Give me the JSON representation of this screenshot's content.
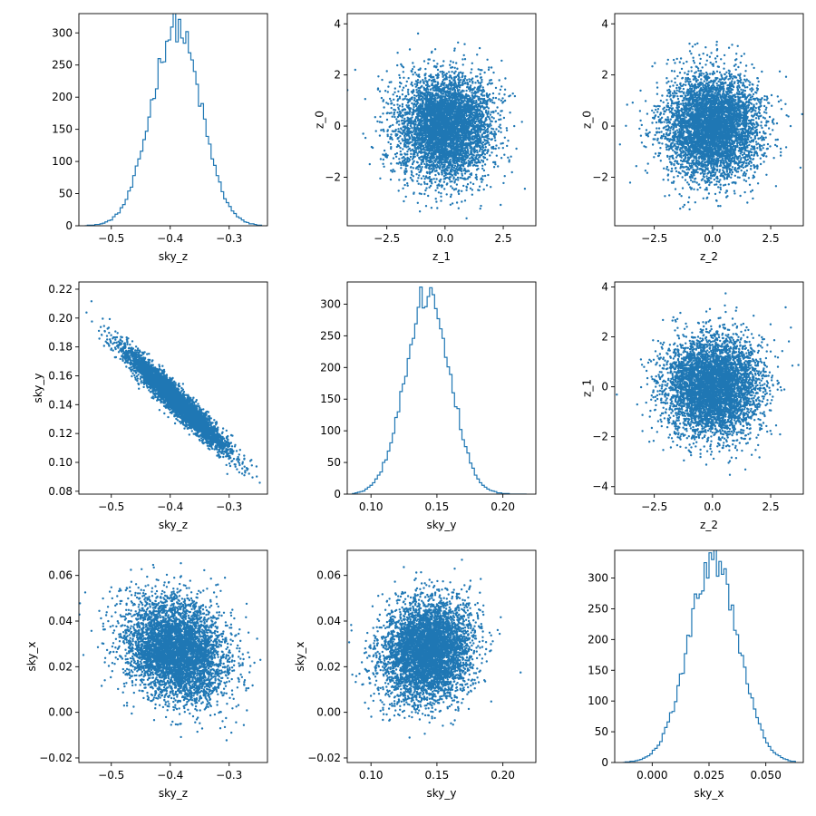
{
  "colors": {
    "series": "#1f77b4",
    "frame": "#000000",
    "background": "#ffffff"
  },
  "chart_data": [
    {
      "type": "histogram",
      "xlabel": "sky_z",
      "ylabel": "",
      "xlim": [
        -0.555,
        -0.235
      ],
      "ylim": [
        0,
        330
      ],
      "xticks": [
        {
          "v": -0.5,
          "l": "−0.5"
        },
        {
          "v": -0.4,
          "l": "−0.4"
        },
        {
          "v": -0.3,
          "l": "−0.3"
        }
      ],
      "yticks": [
        {
          "v": 0,
          "l": "0"
        },
        {
          "v": 50,
          "l": "50"
        },
        {
          "v": 100,
          "l": "100"
        },
        {
          "v": 150,
          "l": "150"
        },
        {
          "v": 200,
          "l": "200"
        },
        {
          "v": 250,
          "l": "250"
        },
        {
          "v": 300,
          "l": "300"
        }
      ],
      "hist": {
        "mean": -0.39,
        "sd": 0.042,
        "peak": 310,
        "range": [
          -0.545,
          -0.245
        ],
        "bins": 70
      }
    },
    {
      "type": "scatter",
      "xlabel": "z_1",
      "ylabel": "z_0",
      "xlim": [
        -4.2,
        3.9
      ],
      "ylim": [
        -3.9,
        4.4
      ],
      "xticks": [
        {
          "v": -2.5,
          "l": "−2.5"
        },
        {
          "v": 0,
          "l": "0.0"
        },
        {
          "v": 2.5,
          "l": "2.5"
        }
      ],
      "yticks": [
        {
          "v": -2,
          "l": "−2"
        },
        {
          "v": 0,
          "l": "0"
        },
        {
          "v": 2,
          "l": "2"
        },
        {
          "v": 4,
          "l": "4"
        }
      ],
      "scatter": {
        "mx": 0,
        "my": 0,
        "sx": 1,
        "sy": 1,
        "rho": 0,
        "n": 5000
      }
    },
    {
      "type": "scatter",
      "xlabel": "z_2",
      "ylabel": "z_0",
      "xlim": [
        -4.2,
        3.9
      ],
      "ylim": [
        -3.9,
        4.4
      ],
      "xticks": [
        {
          "v": -2.5,
          "l": "−2.5"
        },
        {
          "v": 0,
          "l": "0.0"
        },
        {
          "v": 2.5,
          "l": "2.5"
        }
      ],
      "yticks": [
        {
          "v": -2,
          "l": "−2"
        },
        {
          "v": 0,
          "l": "0"
        },
        {
          "v": 2,
          "l": "2"
        },
        {
          "v": 4,
          "l": "4"
        }
      ],
      "scatter": {
        "mx": 0,
        "my": 0,
        "sx": 1,
        "sy": 1,
        "rho": 0,
        "n": 5000
      }
    },
    {
      "type": "scatter",
      "xlabel": "sky_z",
      "ylabel": "sky_y",
      "xlim": [
        -0.555,
        -0.235
      ],
      "ylim": [
        0.078,
        0.225
      ],
      "xticks": [
        {
          "v": -0.5,
          "l": "−0.5"
        },
        {
          "v": -0.4,
          "l": "−0.4"
        },
        {
          "v": -0.3,
          "l": "−0.3"
        }
      ],
      "yticks": [
        {
          "v": 0.08,
          "l": "0.08"
        },
        {
          "v": 0.1,
          "l": "0.10"
        },
        {
          "v": 0.12,
          "l": "0.12"
        },
        {
          "v": 0.14,
          "l": "0.14"
        },
        {
          "v": 0.16,
          "l": "0.16"
        },
        {
          "v": 0.18,
          "l": "0.18"
        },
        {
          "v": 0.2,
          "l": "0.20"
        },
        {
          "v": 0.22,
          "l": "0.22"
        }
      ],
      "scatter": {
        "mx": -0.39,
        "my": 0.143,
        "sx": 0.042,
        "sy": 0.017,
        "rho": -0.96,
        "n": 5000
      }
    },
    {
      "type": "histogram",
      "xlabel": "sky_y",
      "ylabel": "",
      "xlim": [
        0.082,
        0.225
      ],
      "ylim": [
        0,
        335
      ],
      "xticks": [
        {
          "v": 0.1,
          "l": "0.10"
        },
        {
          "v": 0.15,
          "l": "0.15"
        },
        {
          "v": 0.2,
          "l": "0.20"
        }
      ],
      "yticks": [
        {
          "v": 0,
          "l": "0"
        },
        {
          "v": 50,
          "l": "50"
        },
        {
          "v": 100,
          "l": "100"
        },
        {
          "v": 150,
          "l": "150"
        },
        {
          "v": 200,
          "l": "200"
        },
        {
          "v": 250,
          "l": "250"
        },
        {
          "v": 300,
          "l": "300"
        }
      ],
      "hist": {
        "mean": 0.143,
        "sd": 0.017,
        "peak": 318,
        "range": [
          0.086,
          0.218
        ],
        "bins": 70
      }
    },
    {
      "type": "scatter",
      "xlabel": "z_2",
      "ylabel": "z_1",
      "xlim": [
        -4.2,
        3.9
      ],
      "ylim": [
        -4.3,
        4.2
      ],
      "xticks": [
        {
          "v": -2.5,
          "l": "−2.5"
        },
        {
          "v": 0,
          "l": "0.0"
        },
        {
          "v": 2.5,
          "l": "2.5"
        }
      ],
      "yticks": [
        {
          "v": -4,
          "l": "−4"
        },
        {
          "v": -2,
          "l": "−2"
        },
        {
          "v": 0,
          "l": "0"
        },
        {
          "v": 2,
          "l": "2"
        },
        {
          "v": 4,
          "l": "4"
        }
      ],
      "scatter": {
        "mx": 0,
        "my": 0,
        "sx": 1,
        "sy": 1,
        "rho": 0,
        "n": 5000
      }
    },
    {
      "type": "scatter",
      "xlabel": "sky_z",
      "ylabel": "sky_x",
      "xlim": [
        -0.555,
        -0.235
      ],
      "ylim": [
        -0.022,
        0.071
      ],
      "xticks": [
        {
          "v": -0.5,
          "l": "−0.5"
        },
        {
          "v": -0.4,
          "l": "−0.4"
        },
        {
          "v": -0.3,
          "l": "−0.3"
        }
      ],
      "yticks": [
        {
          "v": -0.02,
          "l": "−0.02"
        },
        {
          "v": 0,
          "l": "0.00"
        },
        {
          "v": 0.02,
          "l": "0.02"
        },
        {
          "v": 0.04,
          "l": "0.04"
        },
        {
          "v": 0.06,
          "l": "0.06"
        }
      ],
      "scatter": {
        "mx": -0.39,
        "my": 0.027,
        "sx": 0.042,
        "sy": 0.011,
        "rho": -0.2,
        "n": 5000
      }
    },
    {
      "type": "scatter",
      "xlabel": "sky_y",
      "ylabel": "sky_x",
      "xlim": [
        0.082,
        0.225
      ],
      "ylim": [
        -0.022,
        0.071
      ],
      "xticks": [
        {
          "v": 0.1,
          "l": "0.10"
        },
        {
          "v": 0.15,
          "l": "0.15"
        },
        {
          "v": 0.2,
          "l": "0.20"
        }
      ],
      "yticks": [
        {
          "v": -0.02,
          "l": "−0.02"
        },
        {
          "v": 0,
          "l": "0.00"
        },
        {
          "v": 0.02,
          "l": "0.02"
        },
        {
          "v": 0.04,
          "l": "0.04"
        },
        {
          "v": 0.06,
          "l": "0.06"
        }
      ],
      "scatter": {
        "mx": 0.143,
        "my": 0.027,
        "sx": 0.017,
        "sy": 0.011,
        "rho": 0.1,
        "n": 5000
      }
    },
    {
      "type": "histogram",
      "xlabel": "sky_x",
      "ylabel": "",
      "xlim": [
        -0.0165,
        0.0665
      ],
      "ylim": [
        0,
        345
      ],
      "xticks": [
        {
          "v": 0,
          "l": "0.000"
        },
        {
          "v": 0.025,
          "l": "0.025"
        },
        {
          "v": 0.05,
          "l": "0.050"
        }
      ],
      "yticks": [
        {
          "v": 0,
          "l": "0"
        },
        {
          "v": 50,
          "l": "50"
        },
        {
          "v": 100,
          "l": "100"
        },
        {
          "v": 150,
          "l": "150"
        },
        {
          "v": 200,
          "l": "200"
        },
        {
          "v": 250,
          "l": "250"
        },
        {
          "v": 300,
          "l": "300"
        }
      ],
      "hist": {
        "mean": 0.027,
        "sd": 0.011,
        "peak": 330,
        "range": [
          -0.013,
          0.063
        ],
        "bins": 70
      }
    }
  ]
}
